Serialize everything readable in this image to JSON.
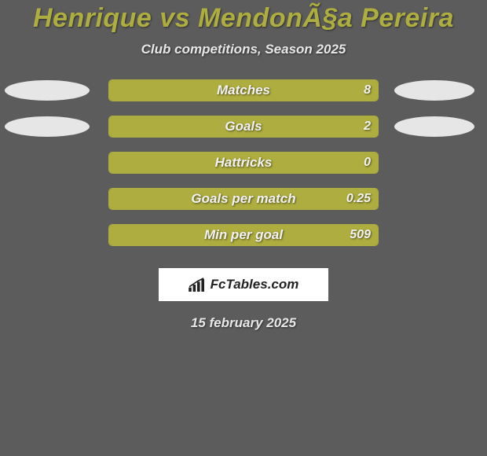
{
  "colors": {
    "page_bg": "#5c5c5c",
    "title": "#aead3f",
    "subtitle": "#e8e8e8",
    "bar_fill": "#aead3f",
    "bar_border": "#aead3f",
    "stat_text": "#f2f2f2",
    "blob": "#e6e6e6",
    "logo_bg": "#ffffff",
    "logo_text": "#222222",
    "date_text": "#e8e8e8"
  },
  "title": "Henrique vs MendonÃ§a Pereira",
  "subtitle": "Club competitions, Season 2025",
  "stats": [
    {
      "label": "Matches",
      "value": "8",
      "fill_pct": 100,
      "left_blob": true,
      "right_blob": true
    },
    {
      "label": "Goals",
      "value": "2",
      "fill_pct": 100,
      "left_blob": true,
      "right_blob": true
    },
    {
      "label": "Hattricks",
      "value": "0",
      "fill_pct": 100,
      "left_blob": false,
      "right_blob": false
    },
    {
      "label": "Goals per match",
      "value": "0.25",
      "fill_pct": 100,
      "left_blob": false,
      "right_blob": false
    },
    {
      "label": "Min per goal",
      "value": "509",
      "fill_pct": 100,
      "left_blob": false,
      "right_blob": false
    }
  ],
  "logo_text": "FcTables.com",
  "date": "15 february 2025"
}
